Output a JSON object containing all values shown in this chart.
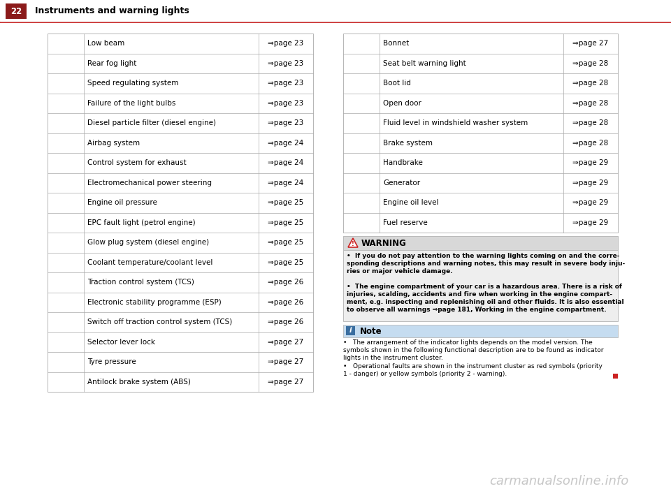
{
  "page_num": "22",
  "page_title": "Instruments and warning lights",
  "header_bg": "#FFFFFF",
  "header_text_color": "#000000",
  "page_box_bg": "#8B1A1A",
  "red_line_color": "#CC2222",
  "bg_color": "#FFFFFF",
  "table_border_color": "#AAAAAA",
  "left_table": [
    {
      "label": "Low beam",
      "page": "⇒page 23"
    },
    {
      "label": "Rear fog light",
      "page": "⇒page 23"
    },
    {
      "label": "Speed regulating system",
      "page": "⇒page 23"
    },
    {
      "label": "Failure of the light bulbs",
      "page": "⇒page 23"
    },
    {
      "label": "Diesel particle filter (diesel engine)",
      "page": "⇒page 23"
    },
    {
      "label": "Airbag system",
      "page": "⇒page 24"
    },
    {
      "label": "Control system for exhaust",
      "page": "⇒page 24"
    },
    {
      "label": "Electromechanical power steering",
      "page": "⇒page 24"
    },
    {
      "label": "Engine oil pressure",
      "page": "⇒page 25"
    },
    {
      "label": "EPC fault light (petrol engine)",
      "page": "⇒page 25"
    },
    {
      "label": "Glow plug system (diesel engine)",
      "page": "⇒page 25"
    },
    {
      "label": "Coolant temperature/coolant level",
      "page": "⇒page 25"
    },
    {
      "label": "Traction control system (TCS)",
      "page": "⇒page 26"
    },
    {
      "label": "Electronic stability programme (ESP)",
      "page": "⇒page 26"
    },
    {
      "label": "Switch off traction control system (TCS)",
      "page": "⇒page 26"
    },
    {
      "label": "Selector lever lock",
      "page": "⇒page 27"
    },
    {
      "label": "Tyre pressure",
      "page": "⇒page 27"
    },
    {
      "label": "Antilock brake system (ABS)",
      "page": "⇒page 27"
    }
  ],
  "right_table": [
    {
      "label": "Bonnet",
      "page": "⇒page 27"
    },
    {
      "label": "Seat belt warning light",
      "page": "⇒page 28"
    },
    {
      "label": "Boot lid",
      "page": "⇒page 28"
    },
    {
      "label": "Open door",
      "page": "⇒page 28"
    },
    {
      "label": "Fluid level in windshield washer system",
      "page": "⇒page 28"
    },
    {
      "label": "Brake system",
      "page": "⇒page 28"
    },
    {
      "label": "Handbrake",
      "page": "⇒page 29"
    },
    {
      "label": "Generator",
      "page": "⇒page 29"
    },
    {
      "label": "Engine oil level",
      "page": "⇒page 29"
    },
    {
      "label": "Fuel reserve",
      "page": "⇒page 29"
    }
  ],
  "warning_title": "WARNING",
  "warning_text1": "If you do not pay attention to the warning lights coming on and the corre-\nsponding descriptions and warning notes, this may result in severe body inju-\nries or major vehicle damage.",
  "warning_text2": "The engine compartment of your car is a hazardous area. There is a risk of\ninjuries, scalding, accidents and fire when working in the engine compart-\nment, e.g. inspecting and replenishing oil and other fluids. It is also essential\nto observe all warnings ⇒page 181, Working in the engine compartment.",
  "note_title": "Note",
  "note_text1": "The arrangement of the indicator lights depends on the model version. The\nsymbols shown in the following functional description are to be found as indicator\nlights in the instrument cluster.",
  "note_text2": "Operational faults are shown in the instrument cluster as red symbols (priority\n1 - danger) or yellow symbols (priority 2 - warning).",
  "watermark": "carmanualsonline.info",
  "orange": "#E07010",
  "red": "#CC2222",
  "green": "#2E7D32",
  "teal": "#006464",
  "note_icon_bg": "#3A6EA0",
  "note_header_bg": "#C5DCF0",
  "warn_header_bg": "#D8D8D8",
  "warn_box_bg": "#EEEEEE",
  "warn_border": "#BBBBBB"
}
